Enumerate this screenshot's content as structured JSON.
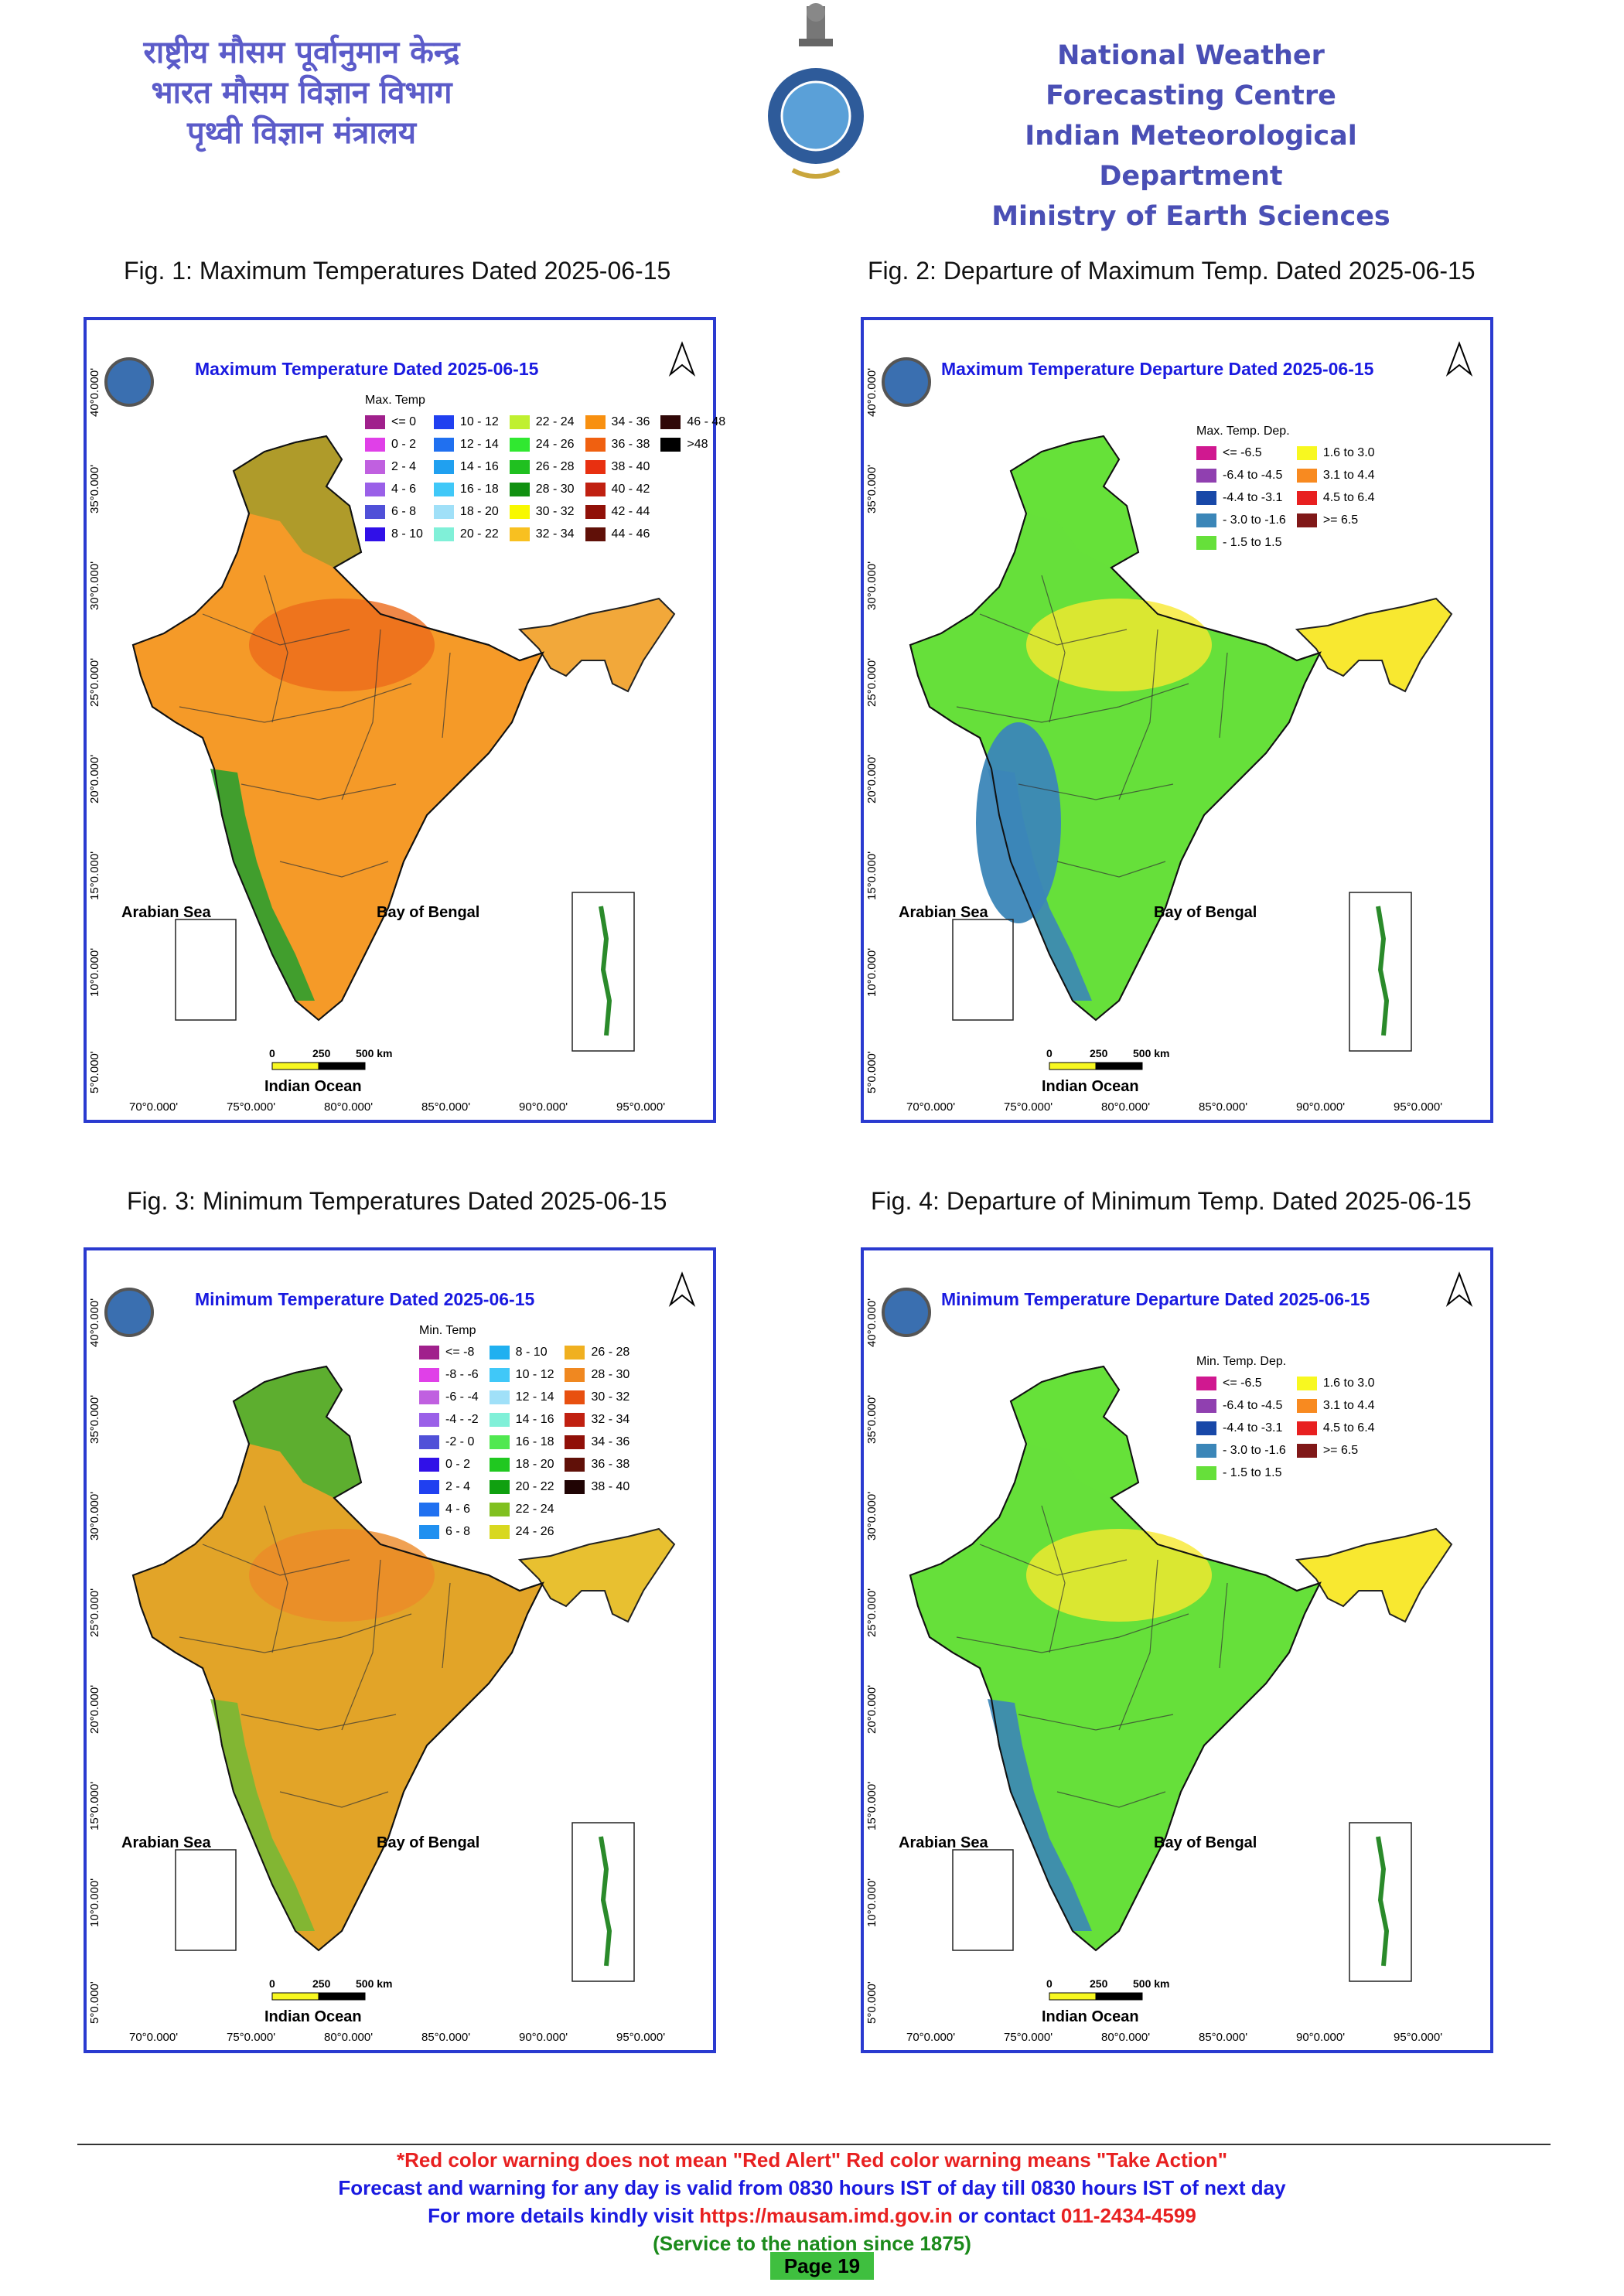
{
  "header": {
    "hindi_lines": [
      "राष्ट्रीय मौसम पूर्वानुमान केन्द्र",
      "भारत मौसम विज्ञान विभाग",
      "पृथ्वी विज्ञान मंत्रालय"
    ],
    "english_lines": [
      "National Weather Forecasting Centre",
      "Indian Meteorological Department",
      "Ministry of Earth Sciences"
    ]
  },
  "figures": [
    {
      "caption": "Fig. 1: Maximum Temperatures Dated 2025-06-15",
      "map_title": "Maximum Temperature Dated 2025-06-15",
      "legend_title": "Max. Temp",
      "legend": [
        {
          "label": "<= 0",
          "color": "#a0208c"
        },
        {
          "label": "0 - 2",
          "color": "#e040e8"
        },
        {
          "label": "2 - 4",
          "color": "#c060e0"
        },
        {
          "label": "4 - 6",
          "color": "#9a60e8"
        },
        {
          "label": "6 - 8",
          "color": "#5050d8"
        },
        {
          "label": "8 - 10",
          "color": "#3010e8"
        },
        {
          "label": "10 - 12",
          "color": "#2040f0"
        },
        {
          "label": "12 - 14",
          "color": "#2070f0"
        },
        {
          "label": "14 - 16",
          "color": "#20a0f0"
        },
        {
          "label": "16 - 18",
          "color": "#40c8f8"
        },
        {
          "label": "18 - 20",
          "color": "#a0e0f8"
        },
        {
          "label": "20 - 22",
          "color": "#80f0d8"
        },
        {
          "label": "22 - 24",
          "color": "#c0f030"
        },
        {
          "label": "24 - 26",
          "color": "#30e830"
        },
        {
          "label": "26 - 28",
          "color": "#20c020"
        },
        {
          "label": "28 - 30",
          "color": "#109010"
        },
        {
          "label": "30 - 32",
          "color": "#f8f800"
        },
        {
          "label": "32 - 34",
          "color": "#f8c020"
        },
        {
          "label": "34 - 36",
          "color": "#f89010"
        },
        {
          "label": "36 - 38",
          "color": "#f06010"
        },
        {
          "label": "38 - 40",
          "color": "#e83010"
        },
        {
          "label": "40 - 42",
          "color": "#c02010"
        },
        {
          "label": "42 - 44",
          "color": "#901008"
        },
        {
          "label": "44 - 46",
          "color": "#601008"
        },
        {
          "label": "46 - 48",
          "color": "#300808"
        },
        {
          "label": ">48",
          "color": "#000000"
        }
      ],
      "map_colors": {
        "base": "#f59a28",
        "hot": "#ec6a1a",
        "cool": "#2e9e2e",
        "ne": "#f2a83a"
      }
    },
    {
      "caption": "Fig. 2: Departure of Maximum Temp. Dated 2025-06-15",
      "map_title": "Maximum Temperature Departure Dated 2025-06-15",
      "legend_title": "Max. Temp. Dep.",
      "legend": [
        {
          "label": "<= -6.5",
          "color": "#d01890"
        },
        {
          "label": "-6.4 to -4.5",
          "color": "#9040b0"
        },
        {
          "label": "-4.4 to -3.1",
          "color": "#1848a8"
        },
        {
          "label": "- 3.0 to -1.6",
          "color": "#3b86b8"
        },
        {
          "label": "- 1.5 to 1.5",
          "color": "#66e03a"
        },
        {
          "label": "1.6 to  3.0",
          "color": "#f8f820"
        },
        {
          "label": "3.1 to 4.4",
          "color": "#f88a20"
        },
        {
          "label": "4.5 to 6.4",
          "color": "#e82020"
        },
        {
          "label": ">= 6.5",
          "color": "#801818"
        }
      ],
      "map_colors": {
        "base": "#66e03a",
        "hot": "#f8e830",
        "cool": "#3b86b8",
        "ne": "#f8e830"
      }
    },
    {
      "caption": "Fig. 3: Minimum Temperatures Dated 2025-06-15",
      "map_title": "Minimum Temperature Dated 2025-06-15",
      "legend_title": "Min. Temp",
      "legend": [
        {
          "label": "<= -8",
          "color": "#a0208c"
        },
        {
          "label": "-8 - -6",
          "color": "#e040e8"
        },
        {
          "label": "-6 - -4",
          "color": "#c060e0"
        },
        {
          "label": "-4 - -2",
          "color": "#9a60e8"
        },
        {
          "label": "-2 - 0",
          "color": "#5050d8"
        },
        {
          "label": "0 - 2",
          "color": "#3010e8"
        },
        {
          "label": "2 - 4",
          "color": "#2040f0"
        },
        {
          "label": "4 - 6",
          "color": "#2070f0"
        },
        {
          "label": "6 - 8",
          "color": "#2090f0"
        },
        {
          "label": "8 - 10",
          "color": "#20b0f0"
        },
        {
          "label": "10 - 12",
          "color": "#40c8f8"
        },
        {
          "label": "12 - 14",
          "color": "#a0e0f8"
        },
        {
          "label": "14 - 16",
          "color": "#80f0d8"
        },
        {
          "label": "16 - 18",
          "color": "#50e850"
        },
        {
          "label": "18 - 20",
          "color": "#20c820"
        },
        {
          "label": "20 - 22",
          "color": "#10a010"
        },
        {
          "label": "22 - 24",
          "color": "#80c020"
        },
        {
          "label": "24 - 26",
          "color": "#d8d820"
        },
        {
          "label": "26 - 28",
          "color": "#f0b020"
        },
        {
          "label": "28 - 30",
          "color": "#f08820"
        },
        {
          "label": "30 - 32",
          "color": "#e85010"
        },
        {
          "label": "32 - 34",
          "color": "#c02010"
        },
        {
          "label": "34 - 36",
          "color": "#901008"
        },
        {
          "label": "36 - 38",
          "color": "#601008"
        },
        {
          "label": "38 - 40",
          "color": "#200404"
        }
      ],
      "map_colors": {
        "base": "#e2a428",
        "hot": "#ec8a28",
        "cool": "#78b834",
        "ne": "#e8c030"
      }
    },
    {
      "caption": "Fig. 4: Departure of Minimum Temp. Dated 2025-06-15",
      "map_title": "Minimum Temperature Departure Dated 2025-06-15",
      "legend_title": "Min. Temp. Dep.",
      "legend": [
        {
          "label": "<= -6.5",
          "color": "#d01890"
        },
        {
          "label": "-6.4 to -4.5",
          "color": "#9040b0"
        },
        {
          "label": "-4.4 to -3.1",
          "color": "#1848a8"
        },
        {
          "label": "- 3.0 to -1.6",
          "color": "#3b86b8"
        },
        {
          "label": "- 1.5 to 1.5",
          "color": "#66e03a"
        },
        {
          "label": "1.6 to  3.0",
          "color": "#f8f820"
        },
        {
          "label": "3.1 to 4.4",
          "color": "#f88a20"
        },
        {
          "label": "4.5 to 6.4",
          "color": "#e82020"
        },
        {
          "label": ">= 6.5",
          "color": "#801818"
        }
      ],
      "map_colors": {
        "base": "#66e03a",
        "hot": "#f8e830",
        "cool": "#3b86b8",
        "ne": "#f8e830"
      }
    }
  ],
  "map_labels": {
    "arabian_sea": "Arabian Sea",
    "bay_of_bengal": "Bay of Bengal",
    "indian_ocean": "Indian Ocean",
    "longitudes": [
      "70°0.000'",
      "75°0.000'",
      "80°0.000'",
      "85°0.000'",
      "90°0.000'",
      "95°0.000'"
    ],
    "latitudes": [
      "40°0.000'",
      "35°0.000'",
      "30°0.000'",
      "25°0.000'",
      "20°0.000'",
      "15°0.000'",
      "10°0.000'",
      "5°0.000'"
    ],
    "scale": [
      "0",
      "250",
      "500 km"
    ]
  },
  "footer": {
    "line1": "*Red color warning does not mean \"Red Alert\" Red color warning means \"Take Action\"",
    "line2": "Forecast and warning for any day is valid from 0830 hours IST of day till 0830 hours IST of next day",
    "line3_prefix": "For more details kindly visit ",
    "line3_url": "https://mausam.imd.gov.in",
    "line3_mid": " or contact ",
    "line3_phone": "011-2434-4599",
    "line4": "(Service to the nation since 1875)",
    "page": "Page 19"
  }
}
